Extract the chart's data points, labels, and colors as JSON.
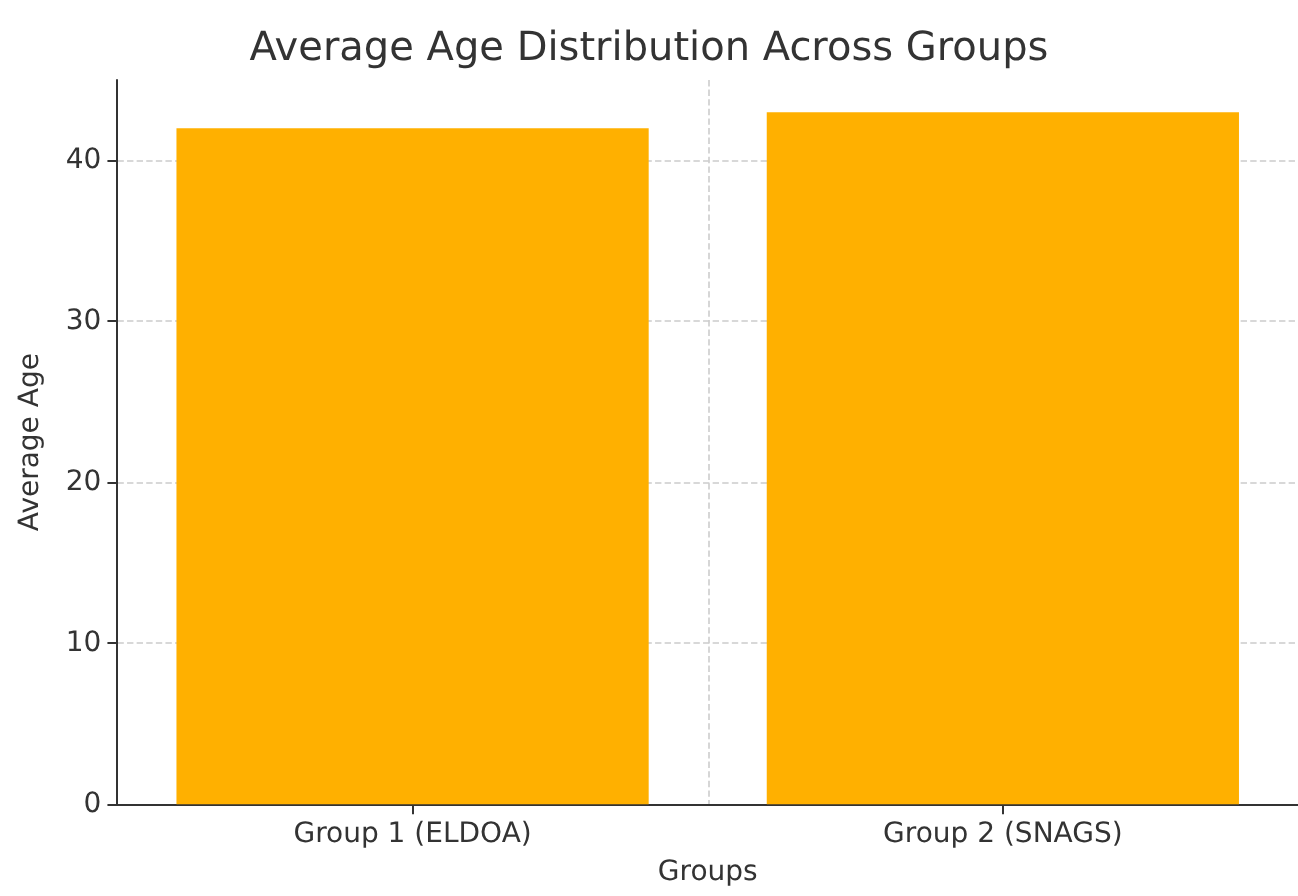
{
  "chart_data": {
    "type": "bar",
    "title": "Average Age Distribution Across Groups",
    "xlabel": "Groups",
    "ylabel": "Average Age",
    "categories": [
      "Group 1 (ELDOA)",
      "Group 2 (SNAGS)"
    ],
    "values": [
      42,
      43
    ],
    "color": "#ffb000",
    "ylim": [
      0,
      45
    ],
    "yticks": [
      0,
      10,
      20,
      30,
      40
    ],
    "grid": true
  }
}
